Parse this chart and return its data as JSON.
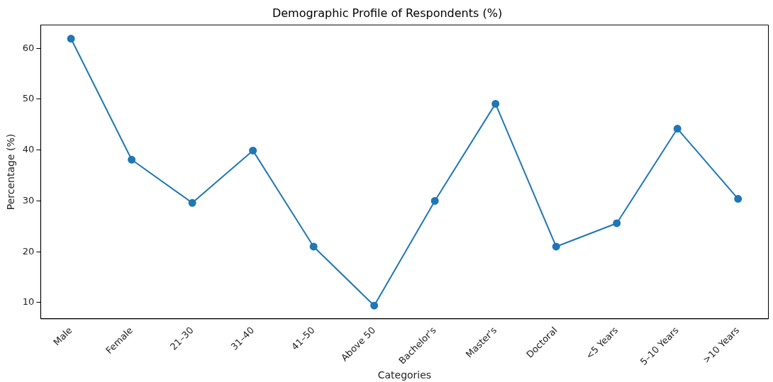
{
  "chart_data": {
    "type": "line",
    "title": "Demographic Profile of Respondents (%)",
    "xlabel": "Categories",
    "ylabel": "Percentage (%)",
    "categories": [
      "Male",
      "Female",
      "21–30",
      "31–40",
      "41–50",
      "Above 50",
      "Bachelor's",
      "Master's",
      "Doctoral",
      "<5 Years",
      "5–10 Years",
      ">10 Years"
    ],
    "series": [
      {
        "color": "#1f77b4",
        "values": [
          61.9,
          38.1,
          29.6,
          39.9,
          21.0,
          9.4,
          30.0,
          49.1,
          21.0,
          25.6,
          44.2,
          30.4
        ]
      }
    ],
    "ylim": [
      6.8,
      64.6
    ],
    "yticks": [
      10,
      20,
      30,
      40,
      50,
      60
    ],
    "grid": false,
    "legend": false,
    "marker": "circle",
    "line_style": "solid"
  }
}
